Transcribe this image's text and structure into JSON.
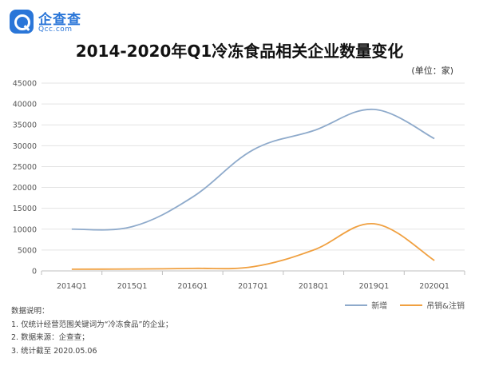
{
  "brand": {
    "name": "企查查",
    "domain": "Qcc.com"
  },
  "chart_data": {
    "type": "line",
    "title": "2014-2020年Q1冷冻食品相关企业数量变化",
    "unit_note": "(单位：家)",
    "categories": [
      "2014Q1",
      "2015Q1",
      "2016Q1",
      "2017Q1",
      "2018Q1",
      "2019Q1",
      "2020Q1"
    ],
    "series": [
      {
        "name": "新增",
        "color": "#8eaacb",
        "values": [
          10000,
          10600,
          17700,
          29000,
          33600,
          38700,
          31700
        ]
      },
      {
        "name": "吊销&注销",
        "color": "#f0a040",
        "values": [
          400,
          450,
          600,
          1000,
          5000,
          11300,
          2500
        ]
      }
    ],
    "ylim": [
      0,
      45000
    ],
    "yticks": [
      0,
      5000,
      10000,
      15000,
      20000,
      25000,
      30000,
      35000,
      40000,
      45000
    ],
    "grid": true,
    "legend": "bottom-right"
  },
  "notes": {
    "heading": "数据说明：",
    "lines": [
      "1. 仅统计经营范围关键词为“冷冻食品”的企业；",
      "2. 数据来源：企查查；",
      "3. 统计截至 2020.05.06"
    ]
  }
}
